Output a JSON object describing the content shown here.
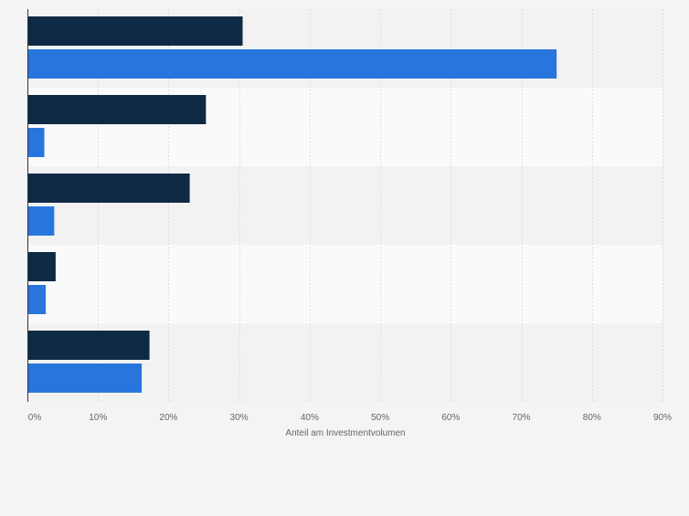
{
  "chart_data": {
    "type": "bar",
    "orientation": "horizontal",
    "categories": [
      "",
      "",
      "",
      "",
      ""
    ],
    "series": [
      {
        "values": [
          30.5,
          25.3,
          23.0,
          4.0,
          17.3
        ],
        "color": "#0f2a44"
      },
      {
        "values": [
          75.0,
          2.4,
          3.8,
          2.6,
          16.2
        ],
        "color": "#2876dd"
      }
    ],
    "xlabel": "Anteil am Investmentvolumen",
    "ylabel": "",
    "xlim": [
      0,
      90
    ],
    "x_ticks": [
      "0%",
      "10%",
      "20%",
      "30%",
      "40%",
      "50%",
      "60%",
      "70%",
      "80%",
      "90%"
    ],
    "grid": true,
    "band_colors": [
      "#f2f2f2",
      "#fafafa"
    ],
    "grid_color": "#dedede",
    "axis_color": "#333333",
    "tick_label_color": "#666666"
  }
}
